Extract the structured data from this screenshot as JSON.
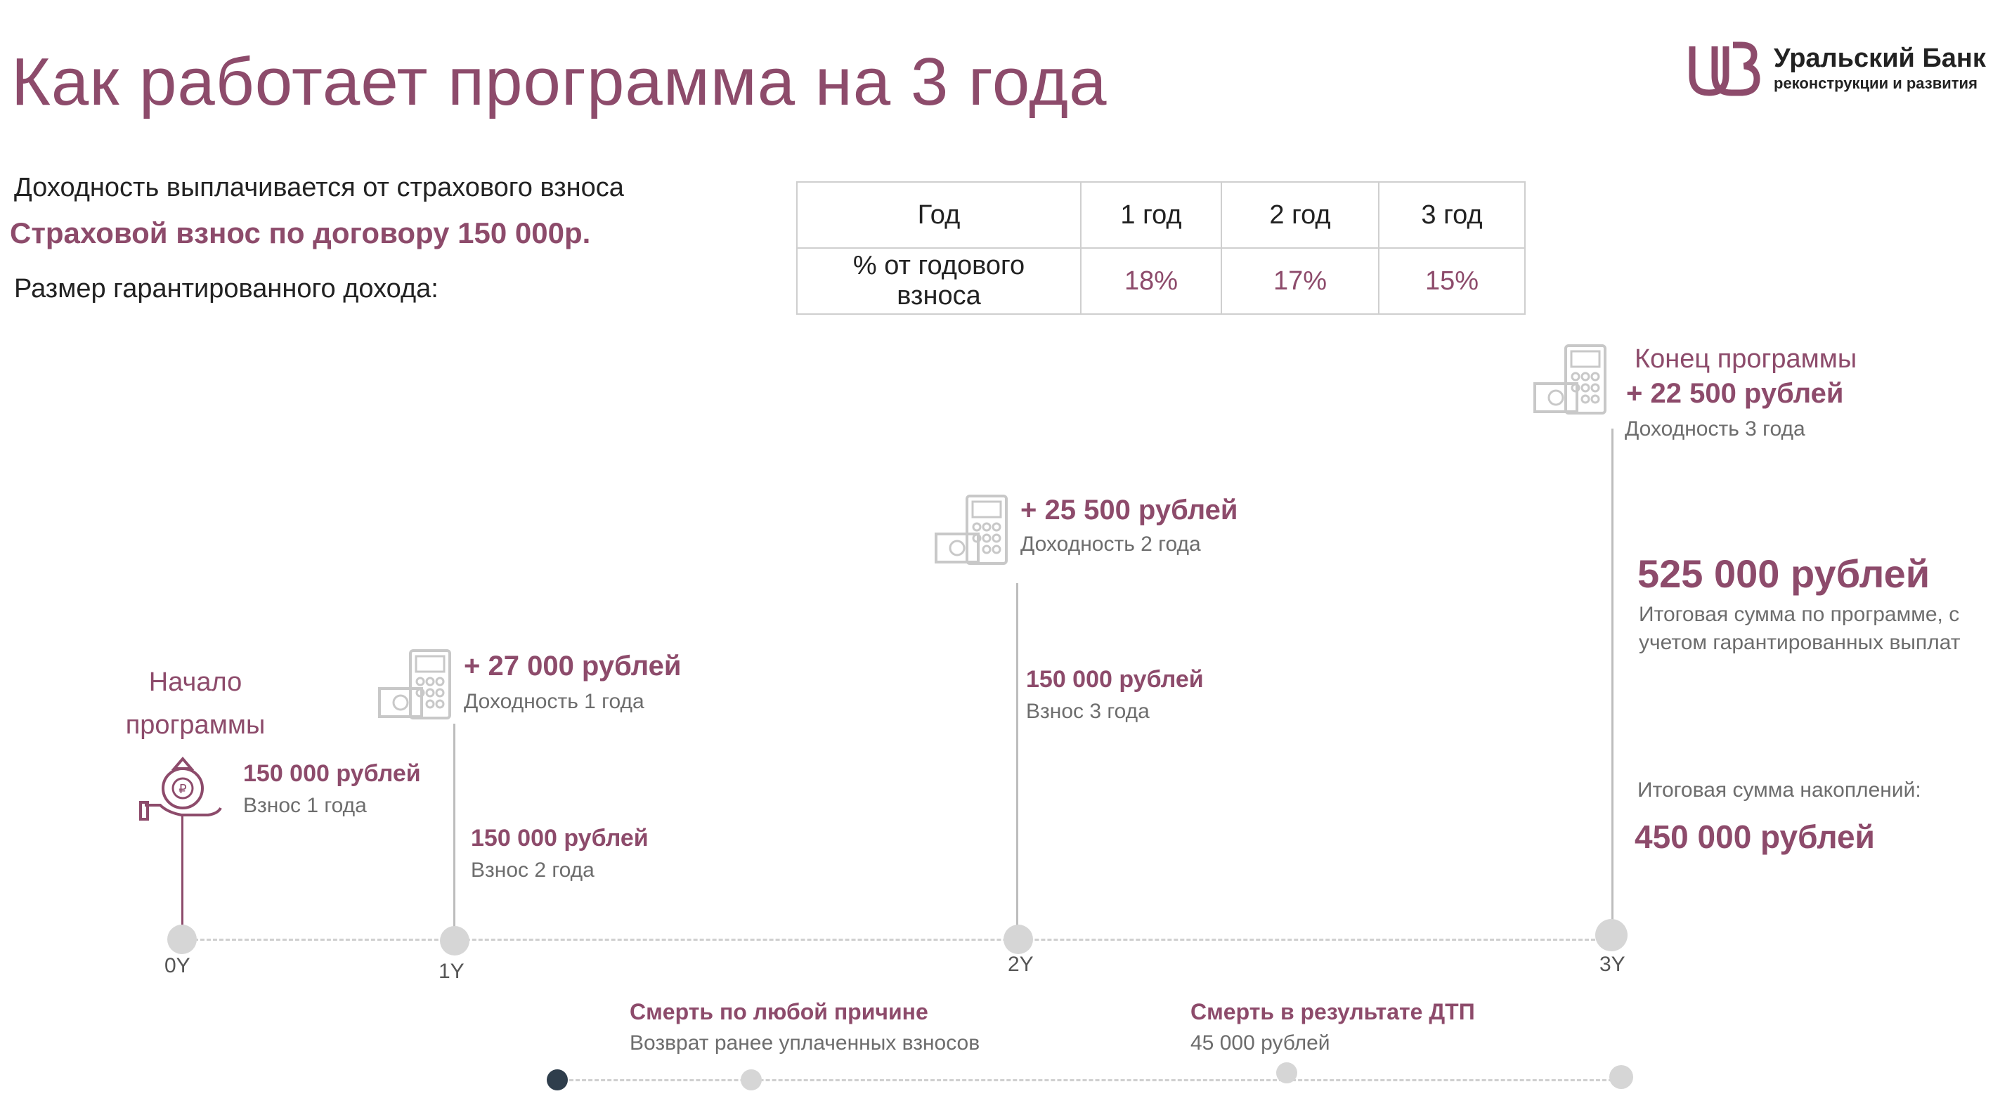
{
  "title": "Как работает программа на 3 года",
  "logo": {
    "name": "Уральский Банк",
    "subtitle": "реконструкции и развития"
  },
  "intro": {
    "line1": "Доходность выплачивается от страхового взноса",
    "line2": "Страховой взнос по договору 150 000р.",
    "line3": "Размер гарантированного дохода:"
  },
  "rates_table": {
    "headers": [
      "Год",
      "1 год",
      "2 год",
      "3 год"
    ],
    "row_label": "% от годового взноса",
    "values": [
      "18%",
      "17%",
      "15%"
    ]
  },
  "timeline": {
    "ticks": [
      "0Y",
      "1Y",
      "2Y",
      "3Y"
    ],
    "start_label_1": "Начало",
    "start_label_2": "программы",
    "payments": [
      {
        "amount": "150 000 рублей",
        "label": "Взнос 1 года"
      },
      {
        "amount": "150 000 рублей",
        "label": "Взнос 2 года"
      },
      {
        "amount": "150 000 рублей",
        "label": "Взнос 3 года"
      }
    ],
    "income": [
      {
        "amount": "+ 27 000 рублей",
        "label": "Доходность 1 года"
      },
      {
        "amount": "+ 25 500 рублей",
        "label": "Доходность 2 года"
      },
      {
        "amount": "+ 22 500 рублей",
        "label": "Доходность 3 года"
      }
    ],
    "end_label": "Конец программы",
    "total": {
      "amount": "525 000 рублей",
      "desc1": "Итоговая сумма по программе, с",
      "desc2": "учетом гарантированных выплат"
    },
    "savings": {
      "label": "Итоговая сумма накоплений:",
      "amount": "450 000 рублей"
    }
  },
  "risks": [
    {
      "title": "Смерть по любой причине",
      "desc": "Возврат ранее уплаченных взносов"
    },
    {
      "title": "Смерть в результате ДТП",
      "desc": "45 000 рублей"
    }
  ],
  "colors": {
    "accent": "#8d4b6b",
    "grey_text": "#6d6d6d",
    "line": "#cfcfcf",
    "dot": "#d6d6d6",
    "dark_dot": "#2f3e4c"
  }
}
